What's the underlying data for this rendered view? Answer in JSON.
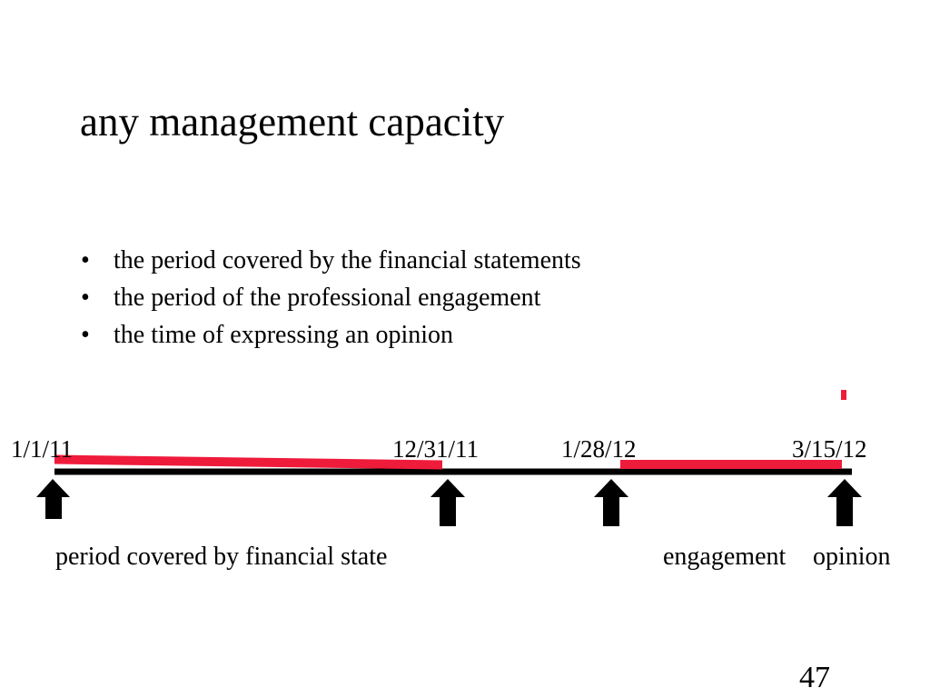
{
  "slide": {
    "title": "any management capacity",
    "bullet_symbol": "•",
    "bullets": [
      "the period covered by the financial statements",
      "the period of the professional engagement",
      "the time of expressing an opinion"
    ],
    "page_number": "47"
  },
  "timeline": {
    "dates": [
      "1/1/11",
      "12/31/11",
      "1/28/12",
      "3/15/12"
    ],
    "labels": {
      "period": "period covered by financial state",
      "engagement": "engagement",
      "opinion": "opinion"
    }
  },
  "colors": {
    "highlight": "#ef1b3b",
    "axis": "#000000",
    "background": "#ffffff"
  }
}
